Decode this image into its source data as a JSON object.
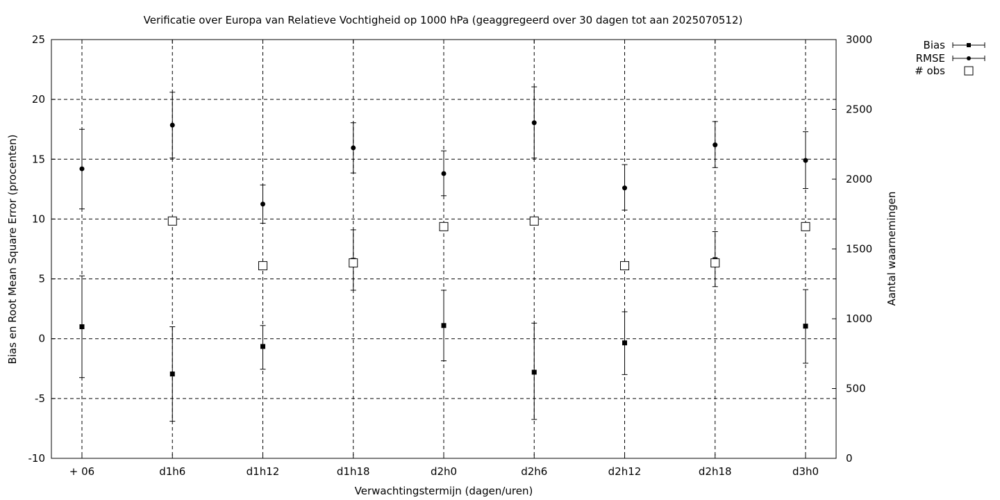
{
  "chart_data": {
    "type": "scatter",
    "title": "Verificatie over Europa van Relatieve Vochtigheid op 1000 hPa (geaggregeerd over 30 dagen tot aan 2025070512)",
    "xlabel": "Verwachtingstermijn (dagen/uren)",
    "ylabel": "Bias en Root Mean Square Error (procenten)",
    "y2label": "Aantal waarnemingen",
    "categories": [
      "+ 06",
      "d1h6",
      "d1h12",
      "d1h18",
      "d2h0",
      "d2h6",
      "d2h12",
      "d2h18",
      "d3h0"
    ],
    "ylim": [
      -10,
      25
    ],
    "yticks": [
      -10,
      -5,
      0,
      5,
      10,
      15,
      20,
      25
    ],
    "y2lim": [
      0,
      3000
    ],
    "y2ticks": [
      0,
      500,
      1000,
      1500,
      2000,
      2500,
      3000
    ],
    "grid": true,
    "legend_position": "top-right outside",
    "series": [
      {
        "name": "Bias",
        "marker": "square",
        "axis": "left",
        "values": [
          1.0,
          -2.95,
          -0.65,
          6.55,
          1.1,
          -2.8,
          -0.35,
          6.6,
          1.05
        ],
        "err_low": [
          -3.25,
          -6.9,
          -2.55,
          4.05,
          -1.85,
          -6.75,
          -3.0,
          4.35,
          -2.05
        ],
        "err_high": [
          5.25,
          1.0,
          1.1,
          9.1,
          4.05,
          1.3,
          2.25,
          8.95,
          4.1
        ]
      },
      {
        "name": "RMSE",
        "marker": "circle",
        "axis": "left",
        "values": [
          14.2,
          17.85,
          11.25,
          15.95,
          13.8,
          18.05,
          12.6,
          16.2,
          14.9
        ],
        "err_low": [
          10.85,
          15.1,
          9.65,
          13.85,
          11.95,
          15.1,
          10.75,
          14.3,
          12.55
        ],
        "err_high": [
          17.5,
          20.6,
          12.85,
          18.05,
          15.7,
          21.05,
          14.55,
          18.15,
          17.3
        ]
      },
      {
        "name": "# obs",
        "marker": "open-square",
        "axis": "right",
        "values": [
          null,
          1700,
          1380,
          1400,
          1660,
          1700,
          1380,
          1400,
          1660
        ]
      }
    ]
  }
}
